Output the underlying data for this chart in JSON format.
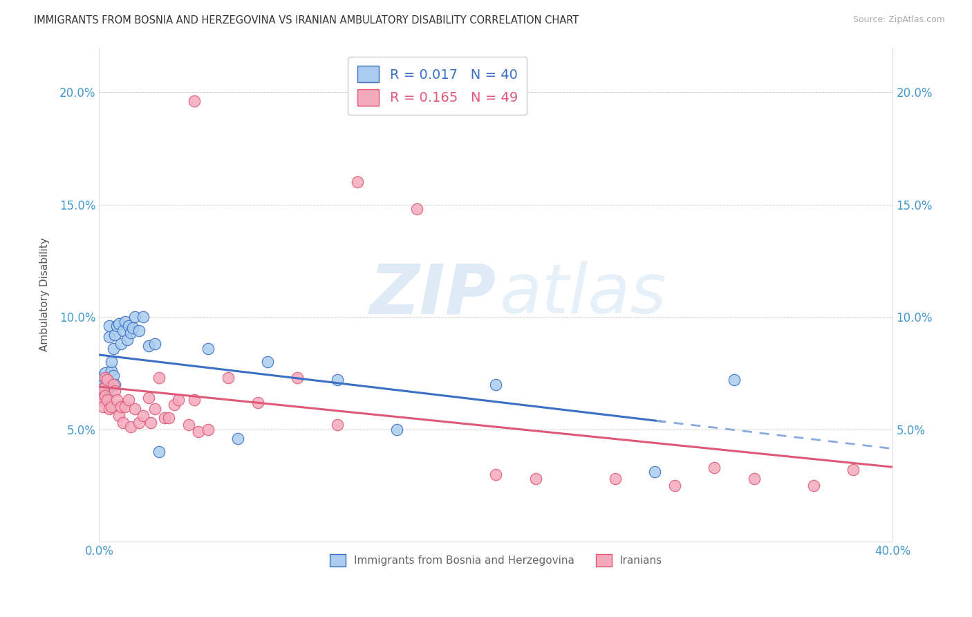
{
  "title": "IMMIGRANTS FROM BOSNIA AND HERZEGOVINA VS IRANIAN AMBULATORY DISABILITY CORRELATION CHART",
  "source": "Source: ZipAtlas.com",
  "ylabel": "Ambulatory Disability",
  "series1_label": "Immigrants from Bosnia and Herzegovina",
  "series2_label": "Iranians",
  "series1_color": "#AACCEE",
  "series2_color": "#F4AABB",
  "series1_line_color": "#3A6FC4",
  "series2_line_color": "#E05878",
  "series1_R": 0.017,
  "series1_N": 40,
  "series2_R": 0.165,
  "series2_N": 49,
  "xlim": [
    0.0,
    0.4
  ],
  "ylim": [
    0.0,
    0.22
  ],
  "xticks": [
    0.0,
    0.05,
    0.1,
    0.15,
    0.2,
    0.25,
    0.3,
    0.35,
    0.4
  ],
  "yticks": [
    0.0,
    0.05,
    0.1,
    0.15,
    0.2
  ],
  "series1_x": [
    0.001,
    0.001,
    0.002,
    0.002,
    0.003,
    0.003,
    0.004,
    0.004,
    0.005,
    0.005,
    0.005,
    0.006,
    0.006,
    0.007,
    0.007,
    0.008,
    0.008,
    0.009,
    0.01,
    0.011,
    0.012,
    0.013,
    0.014,
    0.015,
    0.016,
    0.017,
    0.018,
    0.02,
    0.022,
    0.025,
    0.028,
    0.03,
    0.055,
    0.07,
    0.085,
    0.12,
    0.15,
    0.2,
    0.28,
    0.32
  ],
  "series1_y": [
    0.073,
    0.068,
    0.07,
    0.066,
    0.075,
    0.069,
    0.073,
    0.066,
    0.096,
    0.091,
    0.069,
    0.076,
    0.08,
    0.086,
    0.074,
    0.092,
    0.07,
    0.096,
    0.097,
    0.088,
    0.094,
    0.098,
    0.09,
    0.096,
    0.093,
    0.095,
    0.1,
    0.094,
    0.1,
    0.087,
    0.088,
    0.04,
    0.086,
    0.046,
    0.08,
    0.072,
    0.05,
    0.07,
    0.031,
    0.072
  ],
  "series2_x": [
    0.001,
    0.001,
    0.002,
    0.002,
    0.003,
    0.003,
    0.004,
    0.004,
    0.005,
    0.006,
    0.007,
    0.008,
    0.009,
    0.01,
    0.011,
    0.012,
    0.013,
    0.015,
    0.016,
    0.018,
    0.02,
    0.022,
    0.025,
    0.026,
    0.028,
    0.03,
    0.033,
    0.035,
    0.038,
    0.04,
    0.045,
    0.048,
    0.05,
    0.055,
    0.065,
    0.08,
    0.1,
    0.12,
    0.16,
    0.2,
    0.22,
    0.26,
    0.29,
    0.31,
    0.33,
    0.36,
    0.38,
    0.048,
    0.13
  ],
  "series2_y": [
    0.065,
    0.063,
    0.068,
    0.06,
    0.073,
    0.065,
    0.072,
    0.063,
    0.059,
    0.06,
    0.07,
    0.067,
    0.063,
    0.056,
    0.06,
    0.053,
    0.06,
    0.063,
    0.051,
    0.059,
    0.053,
    0.056,
    0.064,
    0.053,
    0.059,
    0.073,
    0.055,
    0.055,
    0.061,
    0.063,
    0.052,
    0.063,
    0.049,
    0.05,
    0.073,
    0.062,
    0.073,
    0.052,
    0.148,
    0.03,
    0.028,
    0.028,
    0.025,
    0.033,
    0.028,
    0.025,
    0.032,
    0.196,
    0.16
  ],
  "watermark_zip": "ZIP",
  "watermark_atlas": "atlas"
}
